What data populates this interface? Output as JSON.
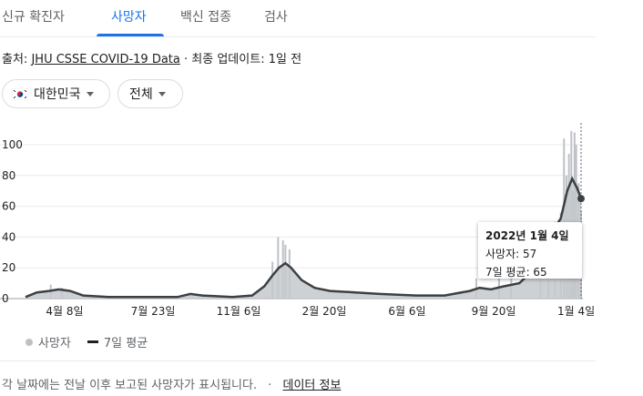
{
  "tabs": [
    {
      "label": "신규 확진자",
      "active": false
    },
    {
      "label": "사망자",
      "active": true
    },
    {
      "label": "백신 접종",
      "active": false
    },
    {
      "label": "검사",
      "active": false
    }
  ],
  "source": {
    "prefix": "출처:",
    "link": "JHU CSSE COVID-19 Data",
    "separator": "·",
    "updated": "최종 업데이트: 1일 전"
  },
  "filters": {
    "country": {
      "label": "대한민국",
      "icon": "south-korea-flag-icon"
    },
    "region": {
      "label": "전체"
    }
  },
  "tooltip": {
    "date": "2022년 1월 4일",
    "deaths": "사망자: 57",
    "avg": "7일 평균: 65"
  },
  "legend": {
    "deaths": "사망자",
    "avg": "7일 평균"
  },
  "footer": {
    "note": "각 날짜에는 전날 이후 보고된 사망자가 표시됩니다.",
    "separator": "·",
    "link": "데이터 정보"
  },
  "colors": {
    "accent": "#1a73e8",
    "bar": "#bdc1c6",
    "line": "#3c4043"
  },
  "chart_data": {
    "type": "bar",
    "title": "",
    "yticks": [
      0,
      20,
      40,
      60,
      80,
      100
    ],
    "ylim": [
      0,
      110
    ],
    "xtick_labels": [
      "4월 8일",
      "7월 23일",
      "11월 6일",
      "2월 20일",
      "6월 6일",
      "9월 20일",
      "1월 4일"
    ],
    "x_range": [
      "2020-02-20",
      "2022-01-04"
    ],
    "series": [
      {
        "name": "7일 평균",
        "kind": "line",
        "points": [
          [
            "2020-02-20",
            1
          ],
          [
            "2020-03-05",
            4
          ],
          [
            "2020-03-20",
            5
          ],
          [
            "2020-04-01",
            6
          ],
          [
            "2020-04-15",
            5
          ],
          [
            "2020-05-01",
            2
          ],
          [
            "2020-06-01",
            1
          ],
          [
            "2020-08-01",
            1
          ],
          [
            "2020-08-25",
            1
          ],
          [
            "2020-09-10",
            3
          ],
          [
            "2020-09-25",
            2
          ],
          [
            "2020-11-01",
            1
          ],
          [
            "2020-11-25",
            2
          ],
          [
            "2020-12-10",
            8
          ],
          [
            "2020-12-20",
            15
          ],
          [
            "2020-12-28",
            20
          ],
          [
            "2021-01-05",
            23
          ],
          [
            "2021-01-12",
            20
          ],
          [
            "2021-01-25",
            12
          ],
          [
            "2021-02-10",
            7
          ],
          [
            "2021-03-01",
            5
          ],
          [
            "2021-04-01",
            4
          ],
          [
            "2021-05-01",
            3
          ],
          [
            "2021-06-15",
            2
          ],
          [
            "2021-07-20",
            2
          ],
          [
            "2021-08-20",
            5
          ],
          [
            "2021-09-01",
            7
          ],
          [
            "2021-09-15",
            6
          ],
          [
            "2021-10-01",
            8
          ],
          [
            "2021-10-20",
            10
          ],
          [
            "2021-11-05",
            18
          ],
          [
            "2021-11-20",
            35
          ],
          [
            "2021-12-01",
            45
          ],
          [
            "2021-12-10",
            52
          ],
          [
            "2021-12-18",
            70
          ],
          [
            "2021-12-24",
            78
          ],
          [
            "2021-12-30",
            72
          ],
          [
            "2022-01-04",
            65
          ]
        ]
      },
      {
        "name": "사망자",
        "kind": "bar",
        "points": [
          [
            "2020-03-22",
            9
          ],
          [
            "2020-04-05",
            7
          ],
          [
            "2020-12-20",
            24
          ],
          [
            "2020-12-27",
            40
          ],
          [
            "2021-01-02",
            38
          ],
          [
            "2021-01-05",
            35
          ],
          [
            "2021-01-10",
            32
          ],
          [
            "2021-08-28",
            13
          ],
          [
            "2021-09-25",
            15
          ],
          [
            "2021-10-10",
            17
          ],
          [
            "2021-11-15",
            29
          ],
          [
            "2021-11-25",
            44
          ],
          [
            "2021-12-03",
            50
          ],
          [
            "2021-12-10",
            56
          ],
          [
            "2021-12-14",
            104
          ],
          [
            "2021-12-17",
            80
          ],
          [
            "2021-12-20",
            94
          ],
          [
            "2021-12-23",
            109
          ],
          [
            "2021-12-25",
            70
          ],
          [
            "2021-12-27",
            108
          ],
          [
            "2021-12-29",
            100
          ],
          [
            "2022-01-01",
            75
          ],
          [
            "2022-01-04",
            57
          ]
        ]
      }
    ],
    "highlight": {
      "x": "2022-01-04",
      "value": 65
    }
  }
}
